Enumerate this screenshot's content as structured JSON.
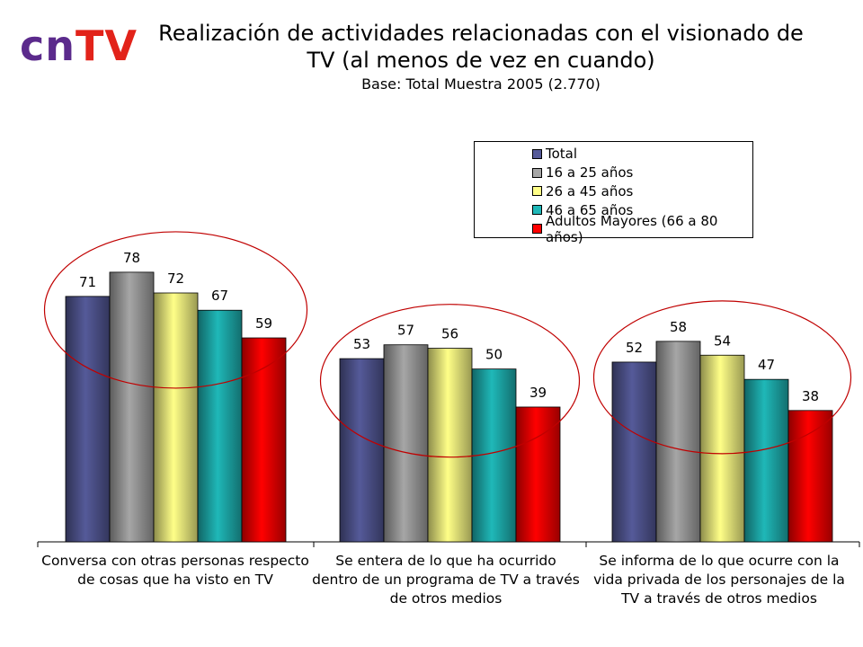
{
  "logo": {
    "part1": "cn",
    "part2": "TV"
  },
  "chart_data": {
    "type": "bar",
    "title": "Realización de actividades relacionadas con el visionado de TV (al menos de vez en cuando)",
    "subtitle": "Base: Total Muestra 2005 (2.770)",
    "categories": [
      "Conversa con otras personas respecto de cosas que ha visto en TV",
      "Se entera de lo que ha ocurrido dentro de un programa de TV a través de otros medios",
      "Se informa de lo que ocurre con la vida privada de los personajes de la TV a través de otros medios"
    ],
    "series": [
      {
        "name": "Total",
        "values": [
          71,
          53,
          52
        ],
        "color": "#555a99"
      },
      {
        "name": "16 a 25 años",
        "values": [
          78,
          57,
          58
        ],
        "color": "#a6a6a6"
      },
      {
        "name": "26 a 45 años",
        "values": [
          72,
          56,
          54
        ],
        "color": "#ffff88"
      },
      {
        "name": "46 a 65 años",
        "values": [
          67,
          50,
          47
        ],
        "color": "#1fb8b8"
      },
      {
        "name": "Adultos Mayores (66 a 80 años)",
        "values": [
          59,
          39,
          38
        ],
        "color": "#ff0000"
      }
    ],
    "ylim": [
      0,
      100
    ],
    "grid": false,
    "legend_position": "top-right",
    "highlight_color": "#c00000"
  }
}
